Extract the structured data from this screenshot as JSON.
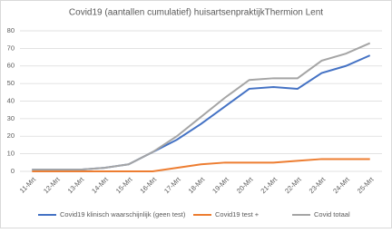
{
  "chart_data": {
    "type": "line",
    "title": "Covid19 (aantallen cumulatief) huisartsenpraktijkThermion Lent",
    "categories": [
      "11-Mrt",
      "12-Mrt",
      "13-Mrt",
      "14-Mrt",
      "15-Mrt",
      "16-Mrt",
      "17-Mrt",
      "18-Mrt",
      "19-Mrt",
      "20-Mrt",
      "21-Mrt",
      "22-Mrt",
      "23-Mrt",
      "24-Mrt",
      "25-Mrt"
    ],
    "series": [
      {
        "name": "Covid19 klinisch waarschijnlijk (geen test)",
        "color": "#4472c4",
        "values": [
          1,
          1,
          1,
          2,
          4,
          11,
          18,
          27,
          37,
          47,
          48,
          47,
          56,
          60,
          66
        ]
      },
      {
        "name": "Covid19 test +",
        "color": "#ed7d31",
        "values": [
          0,
          0,
          0,
          0,
          0,
          0,
          2,
          4,
          5,
          5,
          5,
          6,
          7,
          7,
          7
        ]
      },
      {
        "name": "Covid totaal",
        "color": "#a5a5a5",
        "values": [
          1,
          1,
          1,
          2,
          4,
          11,
          20,
          31,
          42,
          52,
          53,
          53,
          63,
          67,
          73
        ]
      }
    ],
    "ylim": [
      0,
      80
    ],
    "yticks": [
      0,
      10,
      20,
      30,
      40,
      50,
      60,
      70,
      80
    ],
    "grid": true,
    "legend": "bottom"
  }
}
